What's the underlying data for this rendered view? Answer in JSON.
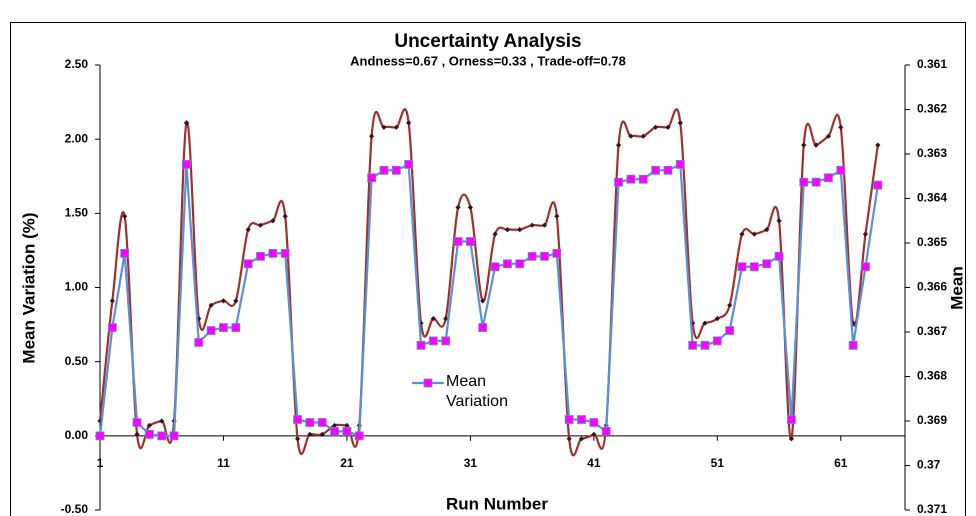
{
  "chart_data": {
    "type": "line",
    "title": "Uncertainty Analysis",
    "subtitle": "Andness=0.67 , Orness=0.33 , Trade-off=0.78",
    "x_label": "Run Number",
    "y_label": "Mean Variation (%)",
    "y2_label": "Mean",
    "x": [
      1,
      2,
      3,
      4,
      5,
      6,
      7,
      8,
      9,
      10,
      11,
      12,
      13,
      14,
      15,
      16,
      17,
      18,
      19,
      20,
      21,
      22,
      23,
      24,
      25,
      26,
      27,
      28,
      29,
      30,
      31,
      32,
      33,
      34,
      35,
      36,
      37,
      38,
      39,
      40,
      41,
      42,
      43,
      44,
      45,
      46,
      47,
      48,
      49,
      50,
      51,
      52,
      53,
      54,
      55,
      56,
      57,
      58,
      59,
      60,
      61,
      62,
      63,
      64
    ],
    "xlim": [
      1,
      66.2
    ],
    "xticks": [
      1,
      11,
      21,
      31,
      41,
      51,
      61
    ],
    "ylim": [
      -0.5,
      2.5
    ],
    "yticks": [
      {
        "value": -0.5,
        "label": "-0.50"
      },
      {
        "value": 0,
        "label": "0.00"
      },
      {
        "value": 0.5,
        "label": "0.50"
      },
      {
        "value": 1,
        "label": "1.00"
      },
      {
        "value": 1.5,
        "label": "1.50"
      },
      {
        "value": 2,
        "label": "2.00"
      },
      {
        "value": 2.5,
        "label": "2.50"
      }
    ],
    "y2lim": [
      0.361,
      0.371
    ],
    "y2ticks": [
      0.361,
      0.362,
      0.363,
      0.364,
      0.365,
      0.366,
      0.367,
      0.368,
      0.369,
      0.37,
      0.371
    ],
    "y2_inverted": true,
    "grid": false,
    "series": [
      {
        "name": "Mean Variation",
        "color": "#5b8fd6",
        "marker_color": "#ff00ff",
        "marker": "square",
        "values": [
          0.0,
          0.73,
          1.23,
          0.09,
          0.01,
          0.0,
          0.0,
          1.83,
          0.63,
          0.71,
          0.73,
          0.73,
          1.16,
          1.21,
          1.23,
          1.23,
          0.11,
          0.09,
          0.09,
          0.03,
          0.03,
          0.0,
          1.74,
          1.79,
          1.79,
          1.83,
          0.61,
          0.64,
          0.64,
          1.31,
          1.31,
          0.73,
          1.14,
          1.16,
          1.16,
          1.21,
          1.21,
          1.23,
          0.11,
          0.11,
          0.09,
          0.03,
          1.71,
          1.73,
          1.73,
          1.79,
          1.79,
          1.83,
          0.61,
          0.61,
          0.64,
          0.71,
          1.14,
          1.14,
          1.16,
          1.21,
          0.11,
          1.71,
          1.71,
          1.74,
          1.79,
          0.61,
          1.14,
          1.69
        ]
      },
      {
        "color": "#a0302c",
        "marker_color": "#3a1020",
        "marker": "diamond",
        "axis": "y2",
        "smooth": true,
        "values": [
          0.369,
          0.3663,
          0.3644,
          0.3693,
          0.3691,
          0.369,
          0.369,
          0.3623,
          0.3667,
          0.3664,
          0.3663,
          0.3663,
          0.3647,
          0.3646,
          0.3645,
          0.3644,
          0.3694,
          0.3693,
          0.3693,
          0.3691,
          0.3691,
          0.3691,
          0.3626,
          0.3624,
          0.3624,
          0.3623,
          0.3668,
          0.3667,
          0.3667,
          0.3642,
          0.3642,
          0.3663,
          0.3648,
          0.3647,
          0.3647,
          0.3646,
          0.3646,
          0.3644,
          0.3694,
          0.3694,
          0.3693,
          0.3691,
          0.3628,
          0.3626,
          0.3626,
          0.3624,
          0.3624,
          0.3623,
          0.3668,
          0.3668,
          0.3667,
          0.3664,
          0.3648,
          0.3648,
          0.3647,
          0.3645,
          0.3694,
          0.3628,
          0.3628,
          0.3626,
          0.3624,
          0.3668,
          0.3648,
          0.3628
        ]
      }
    ]
  }
}
